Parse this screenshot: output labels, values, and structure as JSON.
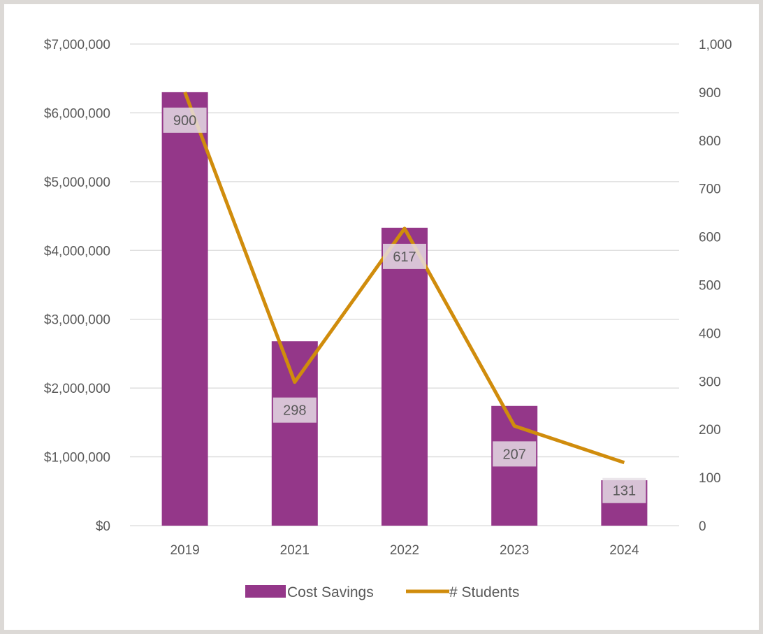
{
  "chart_data": {
    "type": "bar",
    "title": "",
    "categories": [
      "2019",
      "2021",
      "2022",
      "2023",
      "2024"
    ],
    "series": [
      {
        "name": "Cost Savings",
        "type": "bar",
        "axis": "left",
        "values": [
          6300000,
          2680000,
          4330000,
          1740000,
          660000
        ]
      },
      {
        "name": "# Students",
        "type": "line",
        "axis": "right",
        "values": [
          900,
          298,
          617,
          207,
          131
        ],
        "data_labels": [
          "900",
          "298",
          "617",
          "207",
          "131"
        ]
      }
    ],
    "y_left": {
      "min": 0,
      "max": 7000000,
      "ticks": [
        "$0",
        "$1,000,000",
        "$2,000,000",
        "$3,000,000",
        "$4,000,000",
        "$5,000,000",
        "$6,000,000",
        "$7,000,000"
      ]
    },
    "y_right": {
      "min": 0,
      "max": 1000,
      "ticks": [
        "0",
        "100",
        "200",
        "300",
        "400",
        "500",
        "600",
        "700",
        "800",
        "900",
        "1,000"
      ]
    },
    "grid": true,
    "legend": "bottom",
    "colors": {
      "bar": "#943789",
      "line": "#d08c0c",
      "label_box": "#e6e1e6",
      "grid": "#d9d9d9"
    }
  }
}
